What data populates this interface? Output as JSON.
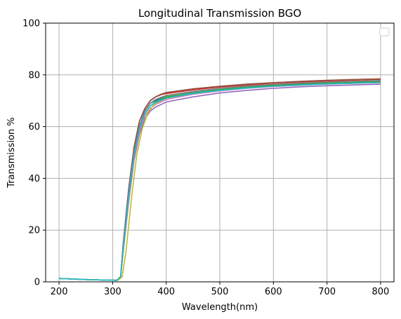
{
  "chart_data": {
    "type": "line",
    "title": "Longitudinal Transmission BGO",
    "xlabel": "Wavelength(nm)",
    "ylabel": "Transmission %",
    "xlim": [
      175,
      825
    ],
    "ylim": [
      0,
      100
    ],
    "xticks": [
      200,
      300,
      400,
      500,
      600,
      700,
      800
    ],
    "yticks": [
      0,
      20,
      40,
      60,
      80,
      100
    ],
    "grid": true,
    "legend": "top-right",
    "series": [
      {
        "color": "#1f77b4",
        "x": [
          200,
          260,
          308,
          315,
          320,
          330,
          340,
          350,
          360,
          370,
          380,
          390,
          400,
          450,
          500,
          550,
          600,
          650,
          700,
          750,
          800
        ],
        "y": [
          1.3,
          0.8,
          0.6,
          2,
          14,
          34,
          50,
          60,
          66,
          69,
          70,
          71,
          72,
          73.5,
          74.8,
          75.6,
          76.3,
          76.8,
          77.2,
          77.5,
          77.8
        ]
      },
      {
        "color": "#ff7f0e",
        "x": [
          200,
          260,
          308,
          315,
          320,
          330,
          340,
          350,
          360,
          370,
          380,
          390,
          400,
          450,
          500,
          550,
          600,
          650,
          700,
          750,
          800
        ],
        "y": [
          1.3,
          0.8,
          0.6,
          2,
          15,
          36,
          52,
          62,
          67,
          70,
          71.5,
          72.5,
          73,
          74.5,
          75.6,
          76.4,
          77,
          77.5,
          77.9,
          78.2,
          78.5
        ]
      },
      {
        "color": "#2ca02c",
        "x": [
          200,
          260,
          308,
          315,
          320,
          330,
          340,
          350,
          360,
          370,
          380,
          390,
          400,
          450,
          500,
          550,
          600,
          650,
          700,
          750,
          800
        ],
        "y": [
          1.3,
          0.8,
          0.6,
          2,
          13,
          33,
          49,
          59,
          65,
          68,
          69.5,
          70.5,
          71.5,
          73,
          74.3,
          75.2,
          75.9,
          76.4,
          76.8,
          77.1,
          77.4
        ]
      },
      {
        "color": "#d62728",
        "x": [
          200,
          260,
          308,
          315,
          320,
          330,
          340,
          350,
          360,
          370,
          380,
          390,
          400,
          450,
          500,
          550,
          600,
          650,
          700,
          750,
          800
        ],
        "y": [
          1.3,
          0.8,
          0.6,
          2,
          15,
          36,
          52,
          62,
          67,
          70,
          71.5,
          72.3,
          72.8,
          74.2,
          75.3,
          76.1,
          76.8,
          77.3,
          77.7,
          78,
          78.3
        ]
      },
      {
        "color": "#9467bd",
        "x": [
          200,
          260,
          308,
          315,
          320,
          330,
          340,
          350,
          360,
          370,
          380,
          390,
          400,
          450,
          500,
          550,
          600,
          650,
          700,
          750,
          800
        ],
        "y": [
          1.3,
          0.8,
          0.6,
          2,
          12,
          31,
          47,
          57,
          63,
          66,
          67.5,
          68.5,
          69.5,
          71.5,
          73,
          74,
          74.8,
          75.4,
          75.8,
          76.1,
          76.4
        ]
      },
      {
        "color": "#8c564b",
        "x": [
          200,
          260,
          308,
          315,
          320,
          330,
          340,
          350,
          360,
          370,
          380,
          390,
          400,
          450,
          500,
          550,
          600,
          650,
          700,
          750,
          800
        ],
        "y": [
          1.3,
          0.8,
          0.6,
          2,
          15,
          36,
          52,
          62,
          67,
          70,
          71.5,
          72.5,
          73.2,
          74.6,
          75.6,
          76.4,
          77,
          77.5,
          77.9,
          78.2,
          78.4
        ]
      },
      {
        "color": "#e377c2",
        "x": [
          200,
          260,
          308,
          315,
          320,
          330,
          340,
          350,
          360,
          370,
          380,
          390,
          400,
          450,
          500,
          550,
          600,
          650,
          700,
          750,
          800
        ],
        "y": [
          1.3,
          0.8,
          0.6,
          2,
          12,
          32,
          48,
          58,
          64,
          67,
          68.5,
          69.5,
          70.5,
          72.5,
          73.8,
          74.8,
          75.5,
          76,
          76.4,
          76.7,
          77
        ]
      },
      {
        "color": "#7f7f7f",
        "x": [
          200,
          260,
          308,
          315,
          320,
          330,
          340,
          350,
          360,
          370,
          380,
          390,
          400,
          450,
          500,
          550,
          600,
          650,
          700,
          750,
          800
        ],
        "y": [
          1.3,
          0.8,
          0.6,
          2,
          14,
          34,
          50,
          60,
          66,
          69,
          70.5,
          71.3,
          72,
          73.6,
          74.8,
          75.7,
          76.3,
          76.8,
          77.2,
          77.5,
          77.8
        ]
      },
      {
        "color": "#bcbd22",
        "x": [
          200,
          260,
          310,
          318,
          325,
          335,
          345,
          355,
          365,
          375,
          385,
          395,
          405,
          450,
          500,
          550,
          600,
          650,
          700,
          750,
          800
        ],
        "y": [
          1.3,
          0.8,
          0.6,
          2,
          12,
          32,
          49,
          59,
          65,
          68,
          69.5,
          70.5,
          71.2,
          72.8,
          74,
          74.9,
          75.6,
          76.1,
          76.5,
          76.8,
          77.1
        ]
      },
      {
        "color": "#17becf",
        "x": [
          200,
          260,
          308,
          315,
          320,
          330,
          340,
          350,
          360,
          370,
          380,
          390,
          400,
          450,
          500,
          550,
          600,
          650,
          700,
          750,
          800
        ],
        "y": [
          1.3,
          0.8,
          0.6,
          2,
          13,
          33,
          49,
          59,
          65,
          68,
          69.3,
          70.2,
          71,
          72.8,
          74,
          74.9,
          75.6,
          76.1,
          76.5,
          76.8,
          77.1
        ]
      }
    ]
  }
}
